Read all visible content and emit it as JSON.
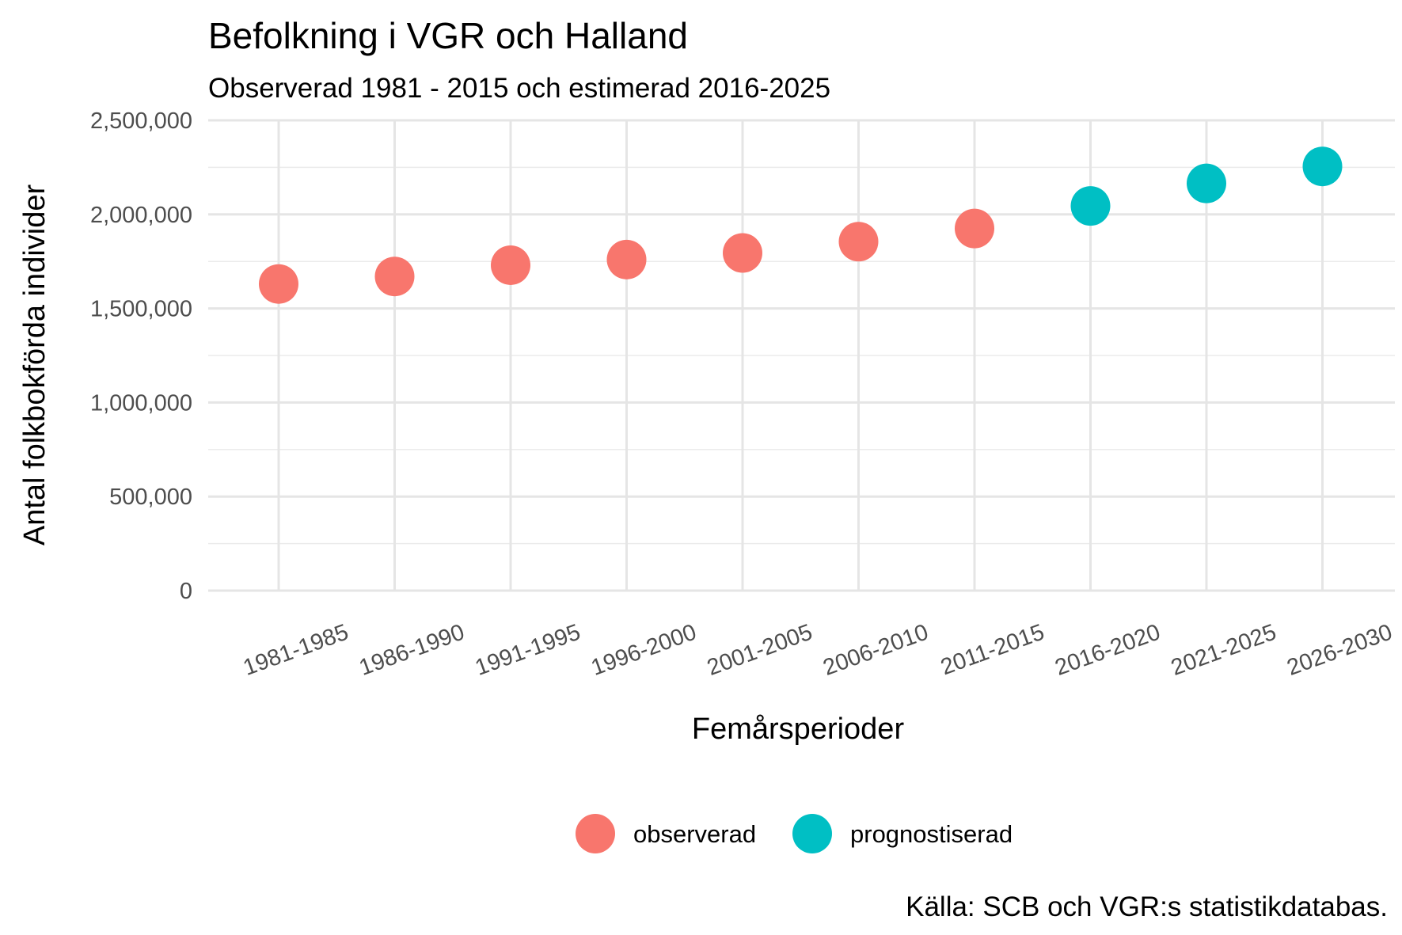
{
  "chart_data": {
    "type": "scatter",
    "title": "Befolkning i VGR och Halland",
    "subtitle": "Observerad 1981 - 2015 och estimerad 2016-2025",
    "caption": "Källa: SCB och VGR:s statistikdatabas.",
    "xlabel": "Femårsperioder",
    "ylabel": "Antal folkbokförda individer",
    "categories": [
      "1981-1985",
      "1986-1990",
      "1991-1995",
      "1996-2000",
      "2001-2005",
      "2006-2010",
      "2011-2015",
      "2016-2020",
      "2021-2025",
      "2026-2030"
    ],
    "ylim": [
      0,
      2500000
    ],
    "yticks": [
      0,
      500000,
      1000000,
      1500000,
      2000000,
      2500000
    ],
    "ytick_labels": [
      "0",
      "500,000",
      "1,000,000",
      "1,500,000",
      "2,000,000",
      "2,500,000"
    ],
    "grid": true,
    "legend_position": "bottom",
    "series": [
      {
        "name": "observerad",
        "color": "#F8766D",
        "points": [
          {
            "x": "1981-1985",
            "y": 1630000
          },
          {
            "x": "1986-1990",
            "y": 1670000
          },
          {
            "x": "1991-1995",
            "y": 1730000
          },
          {
            "x": "1996-2000",
            "y": 1760000
          },
          {
            "x": "2001-2005",
            "y": 1795000
          },
          {
            "x": "2006-2010",
            "y": 1855000
          },
          {
            "x": "2011-2015",
            "y": 1925000
          }
        ]
      },
      {
        "name": "prognostiserad",
        "color": "#00BFC4",
        "points": [
          {
            "x": "2016-2020",
            "y": 2045000
          },
          {
            "x": "2021-2025",
            "y": 2165000
          },
          {
            "x": "2026-2030",
            "y": 2255000
          }
        ]
      }
    ]
  }
}
